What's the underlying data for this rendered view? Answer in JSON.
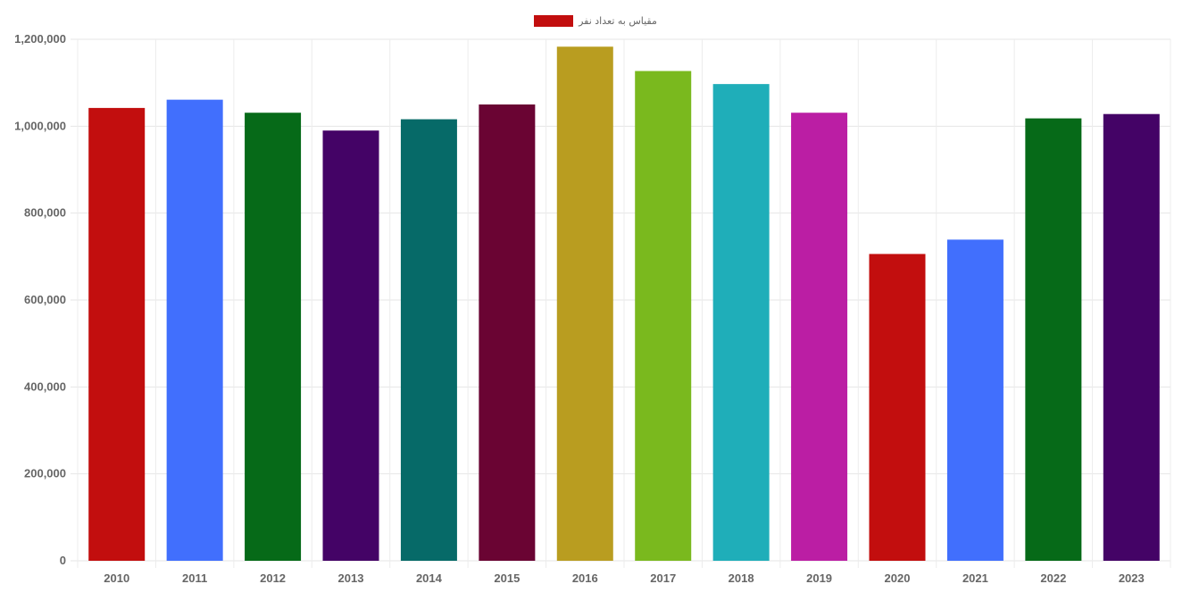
{
  "legend": {
    "label": "مقیاس به تعداد نفر",
    "color": "#c20e0e",
    "position": "top-center"
  },
  "chart_data": {
    "type": "bar",
    "title": "",
    "xlabel": "",
    "ylabel": "",
    "ylim": [
      0,
      1200000
    ],
    "y_ticks": [
      "0",
      "200,000",
      "400,000",
      "600,000",
      "800,000",
      "1,000,000",
      "1,200,000"
    ],
    "y_tick_values": [
      0,
      200000,
      400000,
      600000,
      800000,
      1000000,
      1200000
    ],
    "grid": true,
    "categories": [
      "2010",
      "2011",
      "2012",
      "2013",
      "2014",
      "2015",
      "2016",
      "2017",
      "2018",
      "2019",
      "2020",
      "2021",
      "2022",
      "2023"
    ],
    "series": [
      {
        "name": "مقیاس به تعداد نفر",
        "values": [
          1042000,
          1061000,
          1031000,
          990000,
          1016000,
          1050000,
          1183000,
          1127000,
          1097000,
          1031000,
          706000,
          739000,
          1018000,
          1028000
        ],
        "colors": [
          "#c20e0e",
          "#416ffd",
          "#066a18",
          "#440366",
          "#066a68",
          "#6a0433",
          "#b99d20",
          "#7ab91e",
          "#1faeb9",
          "#bb1ea4",
          "#c20e0e",
          "#416ffd",
          "#066a18",
          "#440366"
        ]
      }
    ]
  }
}
